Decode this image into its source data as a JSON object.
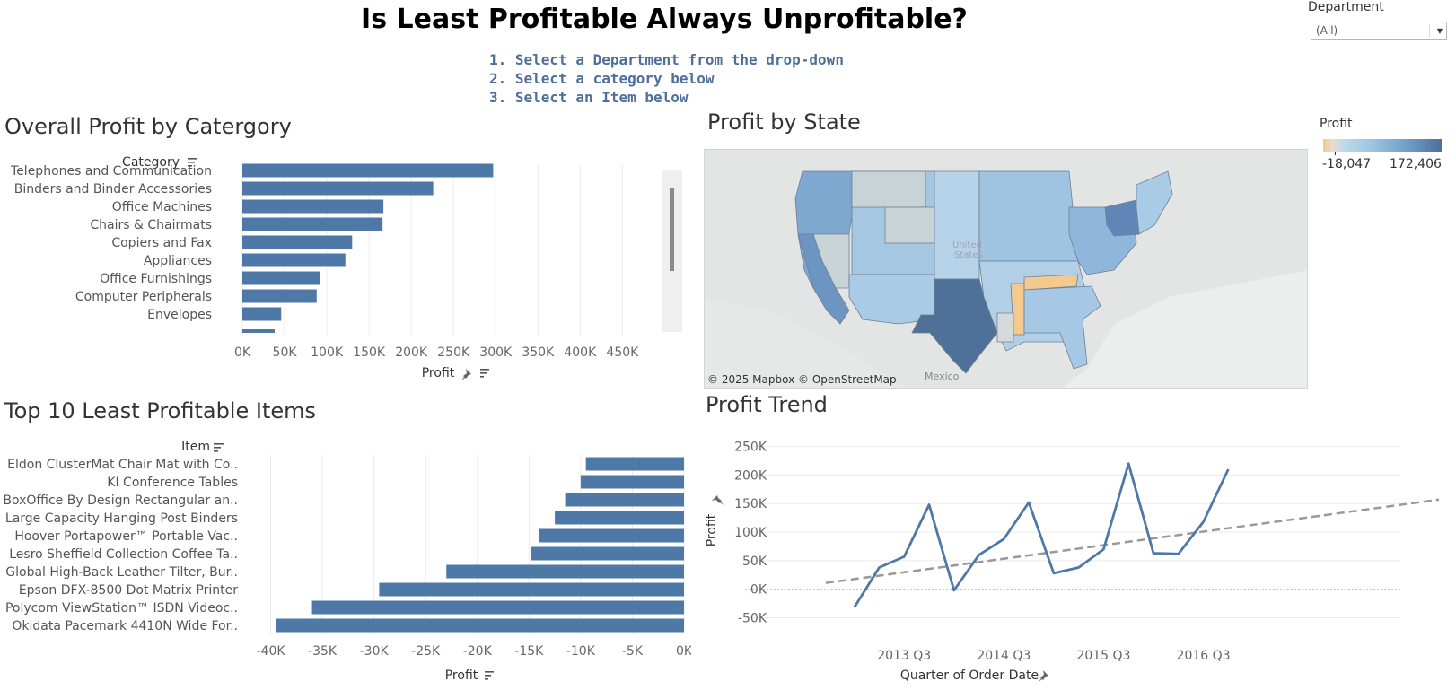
{
  "header": {
    "title": "Is Least Profitable Always Unprofitable?",
    "instructions": [
      "1. Select a Department from the drop-down",
      "2. Select a category below",
      "3. Select an Item below"
    ]
  },
  "filter": {
    "label": "Department",
    "value": "(All)"
  },
  "legend": {
    "title": "Profit",
    "min": "-18,047",
    "max": "172,406",
    "colors": {
      "low": "#f4c98f",
      "mid": "#bed8ea",
      "high": "#4e6e99"
    }
  },
  "map": {
    "title": "Profit by State",
    "attribution": "© 2025 Mapbox © OpenStreetMap",
    "label_mexico": "Mexico"
  },
  "colors": {
    "bar": "#4e79a7",
    "line": "#4e79a7",
    "trend": "#999999",
    "grid": "#ebebeb"
  },
  "chart_data": [
    {
      "type": "bar",
      "title": "Overall Profit by Catergory",
      "header_label": "Category",
      "xlabel": "Profit",
      "categories": [
        "Telephones and Communication",
        "Binders and Binder Accessories",
        "Office Machines",
        "Chairs & Chairmats",
        "Copiers and Fax",
        "Appliances",
        "Office Furnishings",
        "Computer Peripherals",
        "Envelopes"
      ],
      "values": [
        297000,
        226000,
        167000,
        166000,
        130000,
        122000,
        92000,
        88000,
        46000
      ],
      "xlim": [
        0,
        490000
      ],
      "xticks": [
        0,
        50000,
        100000,
        150000,
        200000,
        250000,
        300000,
        350000,
        400000,
        450000
      ],
      "xtick_labels": [
        "0K",
        "50K",
        "100K",
        "150K",
        "200K",
        "250K",
        "300K",
        "350K",
        "400K",
        "450K"
      ]
    },
    {
      "type": "bar",
      "title": "Top 10 Least Profitable Items",
      "header_label": "Item",
      "xlabel": "Profit",
      "categories": [
        "Eldon ClusterMat Chair Mat with Co..",
        "KI Conference Tables",
        "BoxOffice By Design Rectangular an..",
        "Large Capacity Hanging Post Binders",
        "Hoover Portapower™ Portable Vac..",
        "Lesro Sheffield Collection Coffee Ta..",
        "Global High-Back Leather Tilter, Bur..",
        "Epson DFX-8500 Dot Matrix Printer",
        "Polycom ViewStation™ ISDN Videoc..",
        "Okidata Pacemark 4410N Wide For.."
      ],
      "values": [
        -9500,
        -10000,
        -11500,
        -12500,
        -14000,
        -14800,
        -23000,
        -29500,
        -36000,
        -39500
      ],
      "xlim": [
        -41000,
        0
      ],
      "xticks": [
        -40000,
        -35000,
        -30000,
        -25000,
        -20000,
        -15000,
        -10000,
        -5000,
        0
      ],
      "xtick_labels": [
        "-40K",
        "-35K",
        "-30K",
        "-25K",
        "-20K",
        "-15K",
        "-10K",
        "-5K",
        "0K"
      ]
    },
    {
      "type": "line",
      "title": "Profit Trend",
      "xlabel": "Quarter of Order Date",
      "ylabel": "Profit",
      "series": [
        {
          "values": [
            -32000,
            38000,
            57000,
            148000,
            -2000,
            60000,
            88000,
            152000,
            28000,
            38000,
            70000,
            220000,
            63000,
            62000,
            118000,
            210000
          ]
        }
      ],
      "x": [
        1,
        2,
        3,
        4,
        5,
        6,
        7,
        8,
        9,
        10,
        11,
        12,
        13,
        14,
        15,
        16
      ],
      "trend": {
        "start": 11000,
        "end": 157000
      },
      "xlim": [
        -2.3,
        19.3
      ],
      "ylim": [
        -65000,
        262000
      ],
      "yticks": [
        -50000,
        0,
        50000,
        100000,
        150000,
        200000,
        250000
      ],
      "ytick_labels": [
        "-50K",
        "0K",
        "50K",
        "100K",
        "150K",
        "200K",
        "250K"
      ],
      "xticks": [
        3,
        7,
        11,
        15
      ],
      "xtick_labels": [
        "2013 Q3",
        "2014 Q3",
        "2015 Q3",
        "2016 Q3"
      ]
    }
  ]
}
